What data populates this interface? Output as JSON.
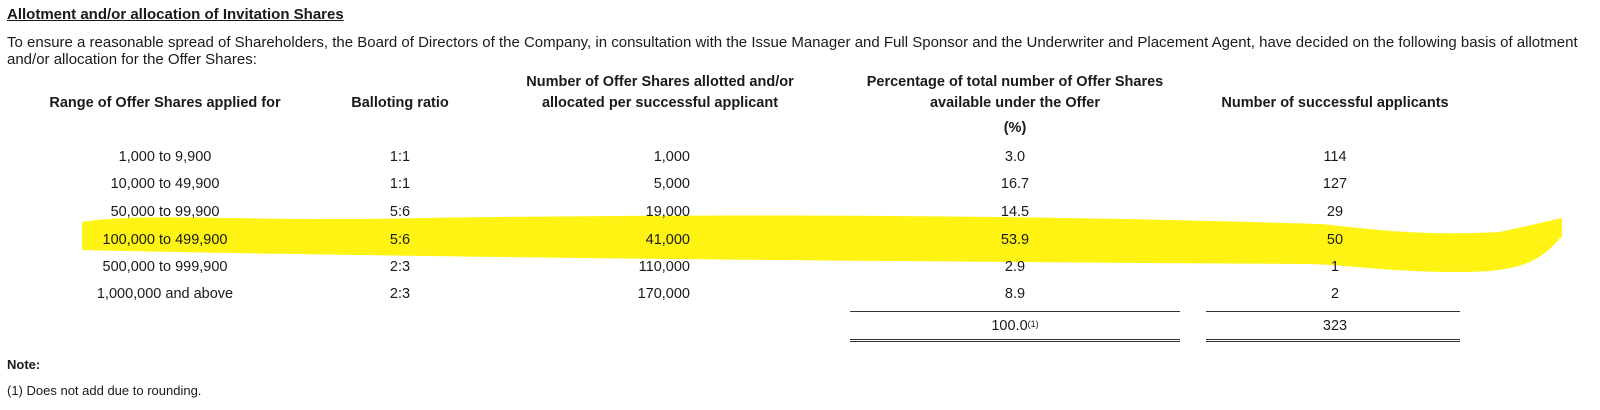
{
  "title": "Allotment and/or allocation of Invitation Shares",
  "intro": "To ensure a reasonable spread of Shareholders, the Board of Directors of the Company, in consultation with the Issue Manager and Full Sponsor and the Underwriter and Placement Agent, have decided on the following basis of allotment and/or allocation for the Offer Shares:",
  "table": {
    "headers": {
      "range": "Range of Offer Shares applied for",
      "ratio": "Balloting ratio",
      "shares_line1": "Number of Offer Shares allotted and/or",
      "shares_line2": "allocated per successful applicant",
      "pct_line1": "Percentage of total number of Offer Shares",
      "pct_line2": "available under the Offer",
      "pct_unit": "(%)",
      "applicants": "Number of successful applicants"
    },
    "rows": [
      {
        "range": "1,000 to 9,900",
        "ratio": "1:1",
        "shares": "1,000",
        "pct": "3.0",
        "applicants": "114"
      },
      {
        "range": "10,000 to 49,900",
        "ratio": "1:1",
        "shares": "5,000",
        "pct": "16.7",
        "applicants": "127"
      },
      {
        "range": "50,000 to 99,900",
        "ratio": "5:6",
        "shares": "19,000",
        "pct": "14.5",
        "applicants": "29"
      },
      {
        "range": "100,000 to 499,900",
        "ratio": "5:6",
        "shares": "41,000",
        "pct": "53.9",
        "applicants": "50"
      },
      {
        "range": "500,000 to 999,900",
        "ratio": "2:3",
        "shares": "110,000",
        "pct": "2.9",
        "applicants": "1"
      },
      {
        "range": "1,000,000 and above",
        "ratio": "2:3",
        "shares": "170,000",
        "pct": "8.9",
        "applicants": "2"
      }
    ],
    "totals": {
      "pct": "100.0",
      "pct_note_ref": "(1)",
      "applicants": "323"
    }
  },
  "highlight_color": "#fff200",
  "note": {
    "label": "Note:",
    "text": "(1) Does not add due to rounding."
  }
}
